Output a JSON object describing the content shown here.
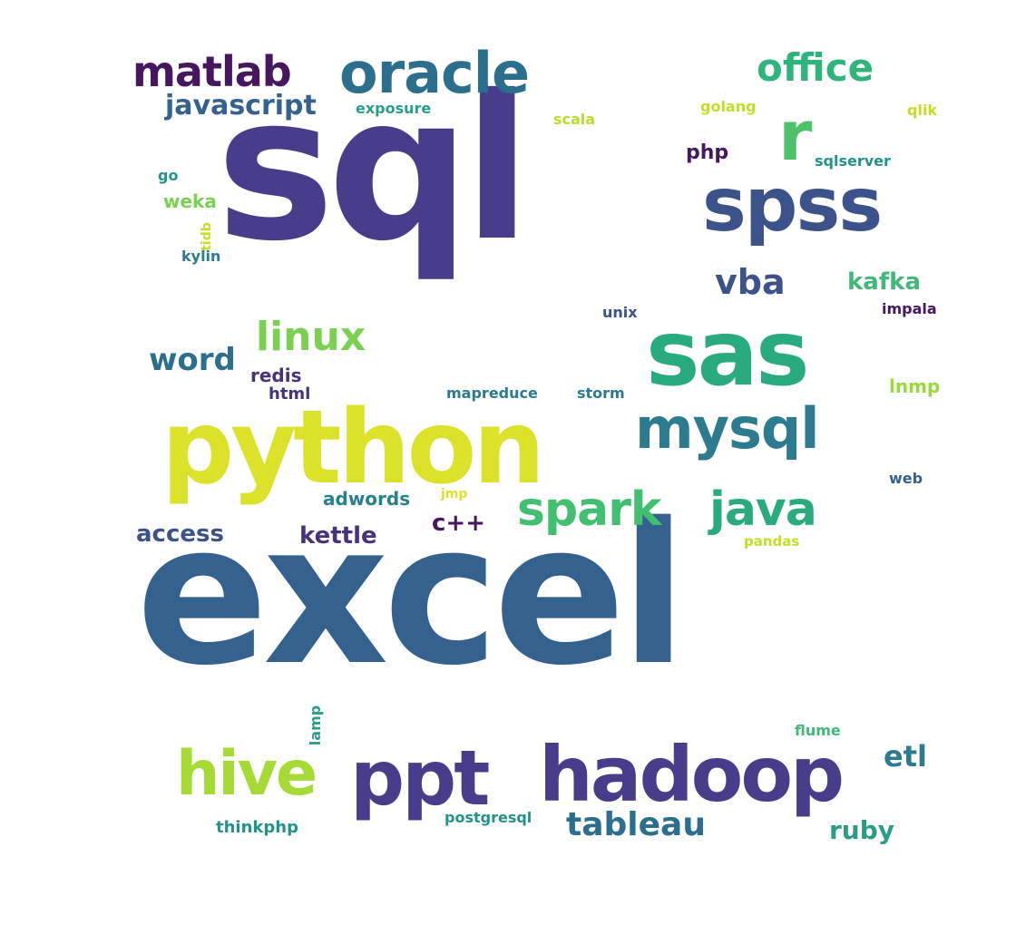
{
  "palette": {
    "background": "#ffffff",
    "indigo": "#483d8b",
    "dark_purple": "#46175f",
    "steel_blue": "#34618d",
    "teal_blue": "#2c7b8e",
    "teal": "#22928b",
    "green_teal": "#2aab7f",
    "green": "#4fc16b",
    "lime": "#88d548",
    "yellow_green": "#c2df23",
    "yellow": "#dce22a"
  },
  "words": [
    {
      "text": "excel",
      "color": "#34618d"
    },
    {
      "text": "sql",
      "color": "#483d8b"
    },
    {
      "text": "python",
      "color": "#dce22a"
    },
    {
      "text": "sas",
      "color": "#2aab7f"
    },
    {
      "text": "hadoop",
      "color": "#483d8b"
    },
    {
      "text": "spss",
      "color": "#3b528b"
    },
    {
      "text": "oracle",
      "color": "#2c6e8e"
    },
    {
      "text": "matlab",
      "color": "#46175f"
    },
    {
      "text": "mysql",
      "color": "#2c7b8e"
    },
    {
      "text": "ppt",
      "color": "#483d8b"
    },
    {
      "text": "hive",
      "color": "#a6da34"
    },
    {
      "text": "spark",
      "color": "#43bf71"
    },
    {
      "text": "java",
      "color": "#2aab7f"
    },
    {
      "text": "office",
      "color": "#2fb47c"
    },
    {
      "text": "r",
      "color": "#4fc16b"
    },
    {
      "text": "linux",
      "color": "#7ad151"
    },
    {
      "text": "word",
      "color": "#2c6e8e"
    },
    {
      "text": "tableau",
      "color": "#2c6e8e"
    },
    {
      "text": "javascript",
      "color": "#34618d"
    },
    {
      "text": "vba",
      "color": "#3b528b"
    },
    {
      "text": "kafka",
      "color": "#42b87a"
    },
    {
      "text": "etl",
      "color": "#2c7b8e"
    },
    {
      "text": "ruby",
      "color": "#2a9d8a"
    },
    {
      "text": "access",
      "color": "#3b528b"
    },
    {
      "text": "kettle",
      "color": "#46337e"
    },
    {
      "text": "c++",
      "color": "#46175f"
    },
    {
      "text": "adwords",
      "color": "#27808e"
    },
    {
      "text": "exposure",
      "color": "#2a9d8a"
    },
    {
      "text": "scala",
      "color": "#b5de2b"
    },
    {
      "text": "golang",
      "color": "#c2df23"
    },
    {
      "text": "qlik",
      "color": "#c2df23"
    },
    {
      "text": "php",
      "color": "#46175f"
    },
    {
      "text": "sqlserver",
      "color": "#22928b"
    },
    {
      "text": "go",
      "color": "#22928b"
    },
    {
      "text": "weka",
      "color": "#7ad151"
    },
    {
      "text": "tidb",
      "color": "#c2df23"
    },
    {
      "text": "kylin",
      "color": "#2c7b8e"
    },
    {
      "text": "unix",
      "color": "#3b528b"
    },
    {
      "text": "impala",
      "color": "#46175f"
    },
    {
      "text": "redis",
      "color": "#46337e"
    },
    {
      "text": "html",
      "color": "#46337e"
    },
    {
      "text": "mapreduce",
      "color": "#2c7b8e"
    },
    {
      "text": "storm",
      "color": "#2c7b8e"
    },
    {
      "text": "lnmp",
      "color": "#9ad93c"
    },
    {
      "text": "web",
      "color": "#34618d"
    },
    {
      "text": "jmp",
      "color": "#dce22a"
    },
    {
      "text": "pandas",
      "color": "#c2df23"
    },
    {
      "text": "lamp",
      "color": "#2a9d8a"
    },
    {
      "text": "flume",
      "color": "#42b87a"
    },
    {
      "text": "thinkphp",
      "color": "#22928b"
    },
    {
      "text": "postgresql",
      "color": "#22928b"
    }
  ]
}
